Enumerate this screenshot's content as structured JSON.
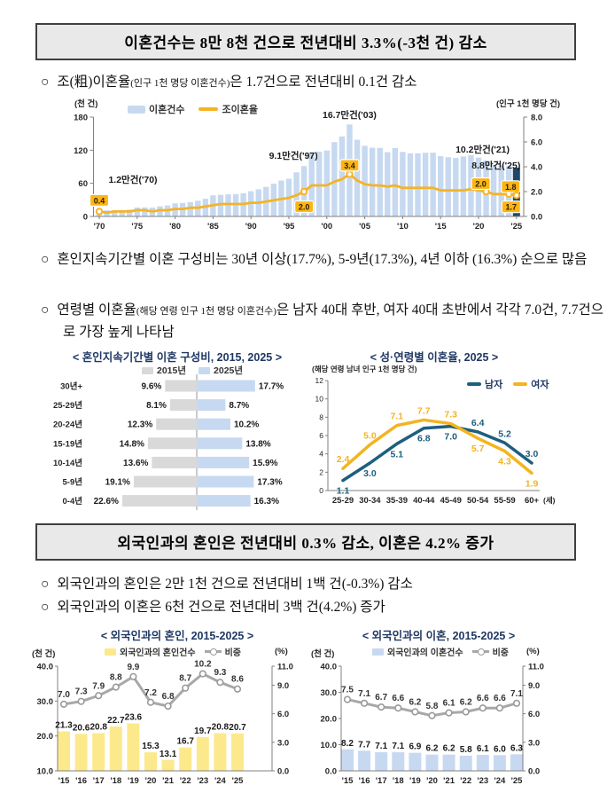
{
  "marker": "○",
  "section1": {
    "headline": "이혼건수는 8만 8천 건으로 전년대비 3.3%(-3천 건) 감소",
    "bullet1": {
      "main": "조(粗)이혼율",
      "small": "(인구 1천 명당 이혼건수)",
      "rest": "은 1.7건으로 전년대비 0.1건 감소"
    },
    "bullet2": "혼인지속기간별 이혼 구성비는 30년 이상(17.7%), 5-9년(17.3%), 4년 이하 (16.3%) 순으로 많음",
    "bullet3": {
      "main": "연령별 이혼율",
      "small": "(해당 연령 인구 1천 명당 이혼건수)",
      "rest": "은 남자 40대 후반, 여자 40대 초반에서 각각 7.0건, 7.7건으로 가장 높게 나타남"
    }
  },
  "section2": {
    "headline": "외국인과의 혼인은 전년대비 0.3% 감소, 이혼은 4.2% 증가",
    "bullet1": "외국인과의 혼인은 2만 1천 건으로 전년대비 1백 건(-0.3%) 감소",
    "bullet2": "외국인과의 이혼은 6천 건으로 전년대비 3백 건(4.2%) 증가"
  },
  "chart_data": [
    {
      "id": "divorce-trend",
      "type": "bar+line",
      "left_axis_label": "(천 건)",
      "right_axis_label": "(인구 1천 명당 건)",
      "legend": [
        {
          "label": "이혼건수",
          "color": "#c6d9f0",
          "type": "bar"
        },
        {
          "label": "조이혼율",
          "color": "#f5b325",
          "type": "line"
        }
      ],
      "x_start_year": 1970,
      "x_ticks": [
        "'70",
        "'75",
        "'80",
        "'85",
        "'90",
        "'95",
        "'00",
        "'05",
        "'10",
        "'15",
        "'20",
        "'25"
      ],
      "left_ticks": [
        0,
        60,
        120,
        180
      ],
      "left_tick_labels": [
        "0",
        "60",
        "120",
        "180"
      ],
      "left_max": 180,
      "right_ticks": [
        0,
        2,
        4,
        6,
        8
      ],
      "right_tick_labels": [
        "0.0",
        "2.0",
        "4.0",
        "6.0",
        "8.0"
      ],
      "right_max": 8,
      "bar_values": [
        11.6,
        11.1,
        11.4,
        11.6,
        12.4,
        16.2,
        16.3,
        16.0,
        18.4,
        19.8,
        23.7,
        24.5,
        26.0,
        28.5,
        32.0,
        38.2,
        39.1,
        40.0,
        40.5,
        42.0,
        45.7,
        49.2,
        53.5,
        59.3,
        65.0,
        68.3,
        79.9,
        91.2,
        116.3,
        117.4,
        119.5,
        134.6,
        144.9,
        166.6,
        138.9,
        128.0,
        124.5,
        124.1,
        116.5,
        124.0,
        116.9,
        114.3,
        114.3,
        115.3,
        115.5,
        109.2,
        107.3,
        106.0,
        108.7,
        110.8,
        106.5,
        101.7,
        93.2,
        92.4,
        91.2,
        88.3
      ],
      "bar_color": "#c6d9f0",
      "bar_highlight_color": "#1a4a66",
      "line_values": [
        0.4,
        0.3,
        0.4,
        0.4,
        0.4,
        0.5,
        0.5,
        0.4,
        0.5,
        0.5,
        0.6,
        0.6,
        0.7,
        0.7,
        0.8,
        0.9,
        1.0,
        1.0,
        1.0,
        1.0,
        1.1,
        1.1,
        1.2,
        1.3,
        1.4,
        1.5,
        1.7,
        2.0,
        2.5,
        2.5,
        2.5,
        2.8,
        3.0,
        3.4,
        2.9,
        2.6,
        2.5,
        2.5,
        2.4,
        2.5,
        2.3,
        2.3,
        2.3,
        2.3,
        2.3,
        2.1,
        2.1,
        2.1,
        2.1,
        2.2,
        2.1,
        2.0,
        1.8,
        1.8,
        1.8,
        1.7
      ],
      "line_color": "#f5b325",
      "label_box_color": "#fcb514",
      "annotations": [
        {
          "text": "1.2만건('70)",
          "year": 1970
        },
        {
          "text": "9.1만건('97)",
          "year": 1997
        },
        {
          "text": "16.7만건('03)",
          "year": 2003
        },
        {
          "text": "10.2만건('21)",
          "year": 2021
        },
        {
          "text": "8.8만건('25)",
          "year": 2025
        }
      ],
      "point_labels": [
        {
          "year": 1970,
          "text": "0.4"
        },
        {
          "year": 1997,
          "text": "2.0"
        },
        {
          "year": 2003,
          "text": "3.4"
        },
        {
          "year": 2021,
          "text": "2.0"
        },
        {
          "year": 2024,
          "text": "1.8"
        },
        {
          "year": 2025,
          "text": "1.7"
        }
      ]
    },
    {
      "id": "duration-composition",
      "type": "tornado-bar",
      "title": "< 혼인지속기간별 이혼 구성비, 2015, 2025 >",
      "legend": [
        {
          "label": "2015년",
          "color": "#d9d9d9"
        },
        {
          "label": "2025년",
          "color": "#c6d9f0"
        }
      ],
      "categories": [
        "30년+",
        "25-29년",
        "20-24년",
        "15-19년",
        "10-14년",
        "5-9년",
        "0-4년"
      ],
      "series": [
        {
          "name": "2015년",
          "color": "#d9d9d9",
          "values": [
            9.6,
            8.1,
            12.3,
            14.8,
            13.6,
            19.1,
            22.6
          ]
        },
        {
          "name": "2025년",
          "color": "#c6d9f0",
          "values": [
            17.7,
            8.7,
            10.2,
            13.8,
            15.9,
            17.3,
            16.3
          ]
        }
      ],
      "unit": "%"
    },
    {
      "id": "divorce-rate-by-age",
      "type": "line",
      "title": "< 성·연령별 이혼율, 2025 >",
      "subtitle": "(해당 연령 남녀 인구 1천 명당 건)",
      "categories": [
        "25-29",
        "30-34",
        "35-39",
        "40-44",
        "45-49",
        "50-54",
        "55-59",
        "60+"
      ],
      "x_suffix": "(세)",
      "y_ticks": [
        0,
        2,
        4,
        6,
        8,
        10,
        12
      ],
      "y_max": 12,
      "series": [
        {
          "name": "남자",
          "color": "#1d5f7e",
          "values": [
            1.1,
            3.0,
            5.1,
            6.8,
            7.0,
            6.4,
            5.2,
            3.0
          ],
          "label_side": [
            "b",
            "b",
            "b",
            "b",
            "b",
            "a",
            "a",
            "a"
          ]
        },
        {
          "name": "여자",
          "color": "#f3b41f",
          "values": [
            2.4,
            5.0,
            7.1,
            7.7,
            7.3,
            5.7,
            4.3,
            1.9
          ],
          "label_side": [
            "a",
            "a",
            "a",
            "a",
            "a",
            "b",
            "b",
            "b"
          ]
        }
      ]
    },
    {
      "id": "marriage-with-foreigners",
      "type": "bar+line",
      "title": "< 외국인과의 혼인, 2015-2025 >",
      "left_axis_label": "(천 건)",
      "right_axis_label": "(%)",
      "legend": [
        {
          "label": "외국인과의 혼인건수",
          "color": "#fce98c",
          "type": "bar"
        },
        {
          "label": "비중",
          "color": "#a8a8a8",
          "type": "line-marker"
        }
      ],
      "x_labels": [
        "'15",
        "'16",
        "'17",
        "'18",
        "'19",
        "'20",
        "'21",
        "'22",
        "'23",
        "'24",
        "'25"
      ],
      "left_min": 10,
      "left_max": 40,
      "left_ticks": [
        10,
        20,
        30,
        40
      ],
      "left_tick_labels": [
        "10.0",
        "20.0",
        "30.0",
        "40.0"
      ],
      "right_max": 11,
      "right_ticks": [
        0,
        3,
        6,
        9,
        11
      ],
      "right_tick_labels": [
        "0.0",
        "3.0",
        "6.0",
        "9.0",
        "11.0"
      ],
      "bar_values": [
        21.3,
        20.6,
        20.8,
        22.7,
        23.6,
        15.3,
        13.1,
        16.7,
        19.7,
        20.8,
        20.7
      ],
      "bar_color": "#fce98c",
      "line_values": [
        7.0,
        7.3,
        7.9,
        8.8,
        9.9,
        7.2,
        6.8,
        8.7,
        10.2,
        9.3,
        8.6
      ],
      "line_color": "#a8a8a8"
    },
    {
      "id": "divorce-with-foreigners",
      "type": "bar+line",
      "title": "< 외국인과의 이혼, 2015-2025 >",
      "left_axis_label": "(천 건)",
      "right_axis_label": "(%)",
      "legend": [
        {
          "label": "외국인과의 이혼건수",
          "color": "#c6d9f0",
          "type": "bar"
        },
        {
          "label": "비중",
          "color": "#a8a8a8",
          "type": "line-marker"
        }
      ],
      "x_labels": [
        "'15",
        "'16",
        "'17",
        "'18",
        "'19",
        "'20",
        "'21",
        "'22",
        "'23",
        "'24",
        "'25"
      ],
      "left_min": 0,
      "left_max": 40,
      "left_ticks": [
        0,
        10,
        20,
        30,
        40
      ],
      "left_tick_labels": [
        "0.0",
        "10.0",
        "20.0",
        "30.0",
        "40.0"
      ],
      "right_max": 11,
      "right_ticks": [
        0,
        3,
        6,
        9,
        11
      ],
      "right_tick_labels": [
        "0.0",
        "3.0",
        "6.0",
        "9.0",
        "11.0"
      ],
      "bar_values": [
        8.2,
        7.7,
        7.1,
        7.1,
        6.9,
        6.2,
        6.2,
        5.8,
        6.1,
        6.0,
        6.3
      ],
      "bar_color": "#c6d9f0",
      "line_values": [
        7.5,
        7.1,
        6.7,
        6.6,
        6.2,
        5.8,
        6.1,
        6.2,
        6.6,
        6.6,
        7.1
      ],
      "line_color": "#a8a8a8"
    }
  ]
}
